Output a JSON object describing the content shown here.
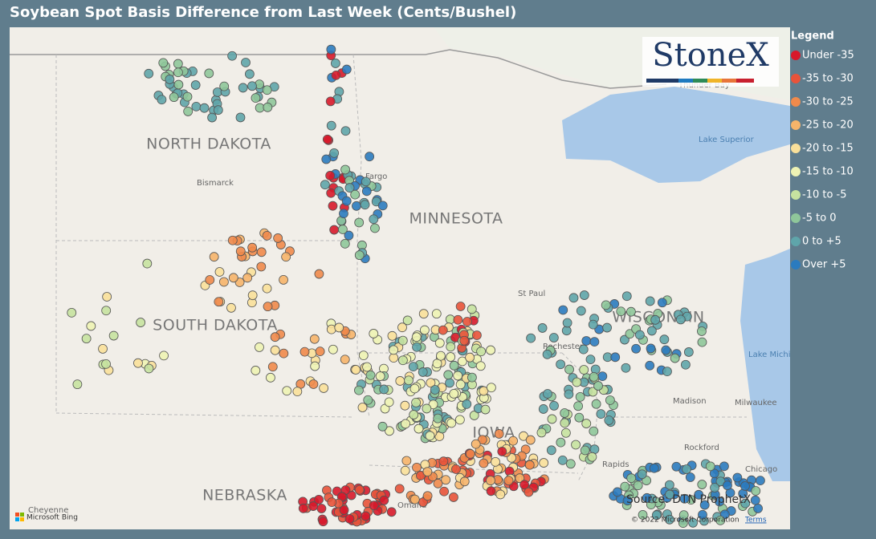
{
  "header": {
    "title": "Soybean Spot Basis Difference from Last Week (Cents/Bushel)"
  },
  "logo": "StoneX",
  "legend": {
    "title": "Legend",
    "items": [
      {
        "label": "Under -35",
        "color": "#d7192b"
      },
      {
        "label": "-35 to -30",
        "color": "#e8533a"
      },
      {
        "label": "-30 to -25",
        "color": "#f08a4b"
      },
      {
        "label": "-25 to -20",
        "color": "#f6b46a"
      },
      {
        "label": "-20 to -15",
        "color": "#f9e09a"
      },
      {
        "label": "-15 to -10",
        "color": "#eef3b4"
      },
      {
        "label": "-10 to -5",
        "color": "#c6e2a0"
      },
      {
        "label": "-5 to 0",
        "color": "#8fc79a"
      },
      {
        "label": "0 to +5",
        "color": "#5fa5aa"
      },
      {
        "label": "Over +5",
        "color": "#2b7bbf"
      }
    ]
  },
  "map": {
    "labels": [
      "NORTH DAKOTA",
      "MINNESOTA",
      "SOUTH DAKOTA",
      "WISCONSIN",
      "NEBRASKA",
      "IOWA"
    ],
    "cities": [
      "Bismarck",
      "Fargo",
      "St Paul",
      "Rochester",
      "Madison",
      "Milwaukee",
      "Rockford",
      "Chicago",
      "Thunder Bay",
      "Omaha",
      "Cheyenne",
      "Rapids"
    ],
    "lakes": [
      "Lake Superior",
      "Lake Michigan"
    ]
  },
  "source": "Source: DTN ProphetX",
  "copyright": "© 2022 Microsoft Corporation",
  "terms": "Terms",
  "attribution": "Microsoft Bing"
}
